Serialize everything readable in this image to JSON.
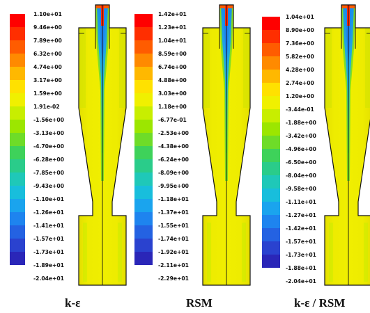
{
  "palette": [
    "#ff0000",
    "#ff2e00",
    "#ff5c00",
    "#ff8a00",
    "#ffb800",
    "#ffe100",
    "#f0f000",
    "#c8ee00",
    "#9ce600",
    "#6edc28",
    "#3ed25a",
    "#2acc8a",
    "#1fc8b8",
    "#18bedc",
    "#1aa4ee",
    "#1e84ef",
    "#2462e2",
    "#2a42cf",
    "#2a26b8"
  ],
  "colormaps": [
    {
      "name": "k-ε",
      "labels": [
        "1.10e+01",
        "9.46e+00",
        "7.89e+00",
        "6.32e+00",
        "4.74e+00",
        "3.17e+00",
        "1.59e+00",
        "1.91e-02",
        "-1.56e+00",
        "-3.13e+00",
        "-4.70e+00",
        "-6.28e+00",
        "-7.85e+00",
        "-9.43e+00",
        "-1.10e+01",
        "-1.26e+01",
        "-1.41e+01",
        "-1.57e+01",
        "-1.73e+01",
        "-1.89e+01",
        "-2.04e+01"
      ]
    },
    {
      "name": "RSM",
      "labels": [
        "1.42e+01",
        "1.23e+01",
        "1.04e+01",
        "8.59e+00",
        "6.74e+00",
        "4.88e+00",
        "3.03e+00",
        "1.18e+00",
        "-6.77e-01",
        "-2.53e+00",
        "-4.38e+00",
        "-6.24e+00",
        "-8.09e+00",
        "-9.95e+00",
        "-1.18e+01",
        "-1.37e+01",
        "-1.55e+01",
        "-1.74e+01",
        "-1.92e+01",
        "-2.11e+01",
        "-2.29e+01"
      ]
    },
    {
      "name": "k-ε / RSM",
      "labels": [
        "1.04e+01",
        "8.90e+00",
        "7.36e+00",
        "5.82e+00",
        "4.28e+00",
        "2.74e+00",
        "1.20e+00",
        "-3.44e-01",
        "-1.88e+00",
        "-3.42e+00",
        "-4.96e+00",
        "-6.50e+00",
        "-8.04e+00",
        "-9.58e+00",
        "-1.11e+01",
        "-1.27e+01",
        "-1.42e+01",
        "-1.57e+01",
        "-1.73e+01",
        "-1.88e+01",
        "-2.04e+01"
      ]
    }
  ]
}
